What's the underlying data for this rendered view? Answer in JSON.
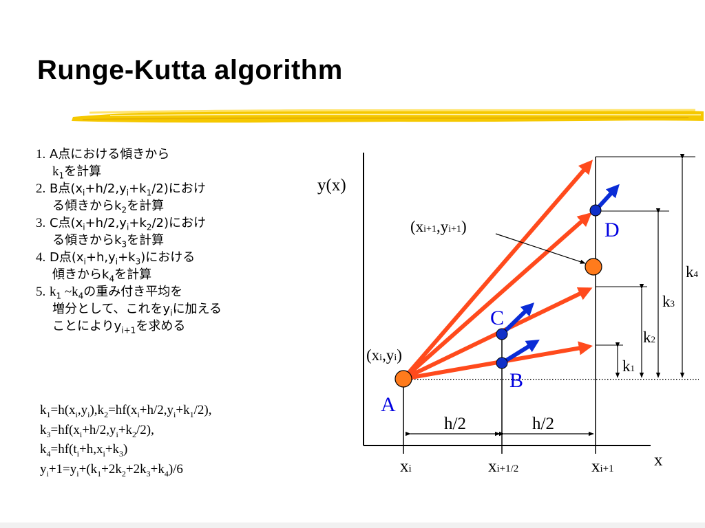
{
  "slide": {
    "title": "Runge-Kutta algorithm"
  },
  "steps": [
    {
      "num": "1.",
      "parts": [
        "A点における傾きから",
        "k",
        "1",
        "を計算"
      ]
    },
    {
      "num": "2.",
      "parts": [
        "B点(x",
        "i",
        "+h/2,y",
        "i",
        "+k",
        "1",
        "/2)におけ",
        "る傾きからk",
        "2",
        "を計算"
      ]
    },
    {
      "num": "3.",
      "parts": [
        "C点(x",
        "i",
        "+h/2,y",
        "i",
        "+k",
        "2",
        "/2)におけ",
        "る傾きからk",
        "3",
        "を計算"
      ]
    },
    {
      "num": "4.",
      "parts": [
        "D点(x",
        "i",
        "+h,y",
        "i",
        "+k",
        "3",
        ")における",
        "傾きからk",
        "4",
        "を計算"
      ]
    },
    {
      "num": "5.",
      "parts": [
        "k",
        "1",
        " ~k",
        "4",
        "の重み付き平均を",
        "増分として、これをy",
        "i",
        "に加える",
        "ことによりy",
        "i+1",
        "を求める"
      ]
    }
  ],
  "formulas": [
    [
      "k",
      "1",
      "=h(x",
      "i",
      ",y",
      "i",
      "),k",
      "2",
      "=hf(x",
      "i",
      "+h/2,y",
      "i",
      "+k",
      "1",
      "/2),"
    ],
    [
      "k",
      "3",
      "=hf(x",
      "i",
      "+h/2,y",
      "i",
      "+k",
      "2",
      "/2),"
    ],
    [
      "k",
      "4",
      "=hf(t",
      "i",
      "+h,x",
      "i",
      "+k",
      "3",
      ")"
    ],
    [
      "y",
      "i",
      "+1=y",
      "i",
      "+(k",
      "1",
      "+2k",
      "2",
      "+2k",
      "3",
      "+k",
      "4",
      ")/6"
    ]
  ],
  "diagram": {
    "y_axis_label": "y(x)",
    "x_axis_label": "x",
    "x_ticks": [
      [
        "x",
        "i"
      ],
      [
        "x",
        "i+1/2"
      ],
      [
        "x",
        "i+1"
      ]
    ],
    "points": {
      "A": "A",
      "B": "B",
      "C": "C",
      "D": "D"
    },
    "start_label": [
      "(x",
      "i",
      ",y",
      "i",
      ")"
    ],
    "end_label": [
      "(x",
      "i+1",
      ",y",
      "i+1",
      ")"
    ],
    "h_labels": [
      "h/2",
      "h/2"
    ],
    "k_labels": [
      [
        "k",
        "1"
      ],
      [
        "k",
        "2"
      ],
      [
        "k",
        "3"
      ],
      [
        "k",
        "4"
      ]
    ],
    "colors": {
      "arrow_red": "#ff4a1c",
      "arrow_blue": "#0a2cd6",
      "point_orange": "#ff7b1c",
      "point_blue": "#1030c8",
      "label_blue": "#0000e0",
      "brush_yellow": "#f5c800"
    }
  }
}
